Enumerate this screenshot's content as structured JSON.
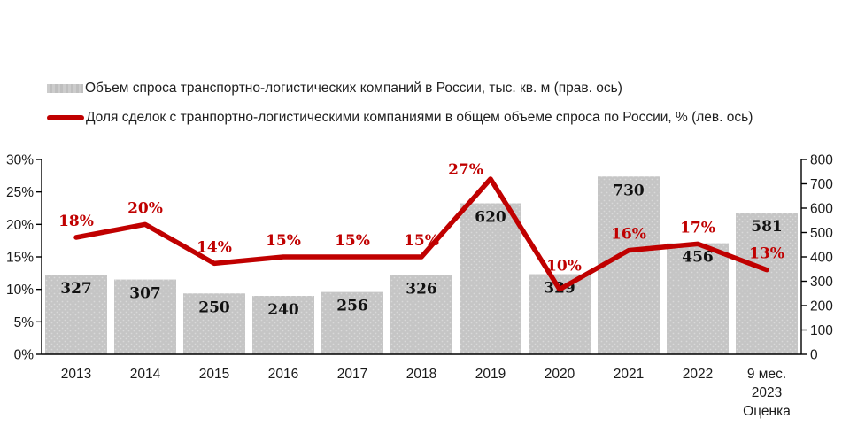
{
  "legend": {
    "bars_label": "Объем спроса транспортно-логистических компаний в России, тыс. кв. м (прав. ось)",
    "line_label": "Доля сделок с транпортно-логистическими компаниями в общем объеме спроса по России, % (лев. ось)"
  },
  "colors": {
    "bar_fill": "#c5c5c5",
    "bar_dot": "#d9d9d9",
    "line": "#c00000",
    "bar_label": "#111111",
    "pct_label": "#c00000",
    "axis": "#000000",
    "tick_text": "#1a1a1a",
    "background": "#ffffff"
  },
  "chart_data": {
    "type": "bar",
    "subtype": "bar+line-combo",
    "categories": [
      "2013",
      "2014",
      "2015",
      "2016",
      "2017",
      "2018",
      "2019",
      "2020",
      "2021",
      "2022",
      "9 мес.\n2023\nОценка"
    ],
    "series": [
      {
        "name": "Объем спроса транспортно-логистических компаний в России, тыс. кв. м (прав. ось)",
        "type": "bar",
        "axis": "right",
        "values": [
          327,
          307,
          250,
          240,
          256,
          326,
          620,
          329,
          730,
          456,
          581
        ],
        "value_labels": [
          "327",
          "307",
          "250",
          "240",
          "256",
          "326",
          "620",
          "329",
          "730",
          "456",
          "581"
        ]
      },
      {
        "name": "Доля сделок с транпортно-логистическими компаниями в общем объеме спроса по России, % (лев. ось)",
        "type": "line",
        "axis": "left",
        "values": [
          18,
          20,
          14,
          15,
          15,
          15,
          27,
          10,
          16,
          17,
          13
        ],
        "value_labels": [
          "18%",
          "20%",
          "14%",
          "15%",
          "15%",
          "15%",
          "27%",
          "10%",
          "16%",
          "17%",
          "13%"
        ]
      }
    ],
    "left_axis": {
      "min": 0,
      "max": 30,
      "step": 5,
      "ticks": [
        "0%",
        "5%",
        "10%",
        "15%",
        "20%",
        "25%",
        "30%"
      ]
    },
    "right_axis": {
      "min": 0,
      "max": 800,
      "step": 100,
      "ticks": [
        "0",
        "100",
        "200",
        "300",
        "400",
        "500",
        "600",
        "700",
        "800"
      ]
    },
    "grid": false,
    "legend_position": "top-left",
    "label_offsets": {
      "6": {
        "dx": -28,
        "dy": -5
      },
      "7": {
        "dx": 5,
        "dy": -21
      }
    },
    "title": "",
    "xlabel": "",
    "ylabel_left": "%",
    "ylabel_right": "тыс. кв. м"
  }
}
